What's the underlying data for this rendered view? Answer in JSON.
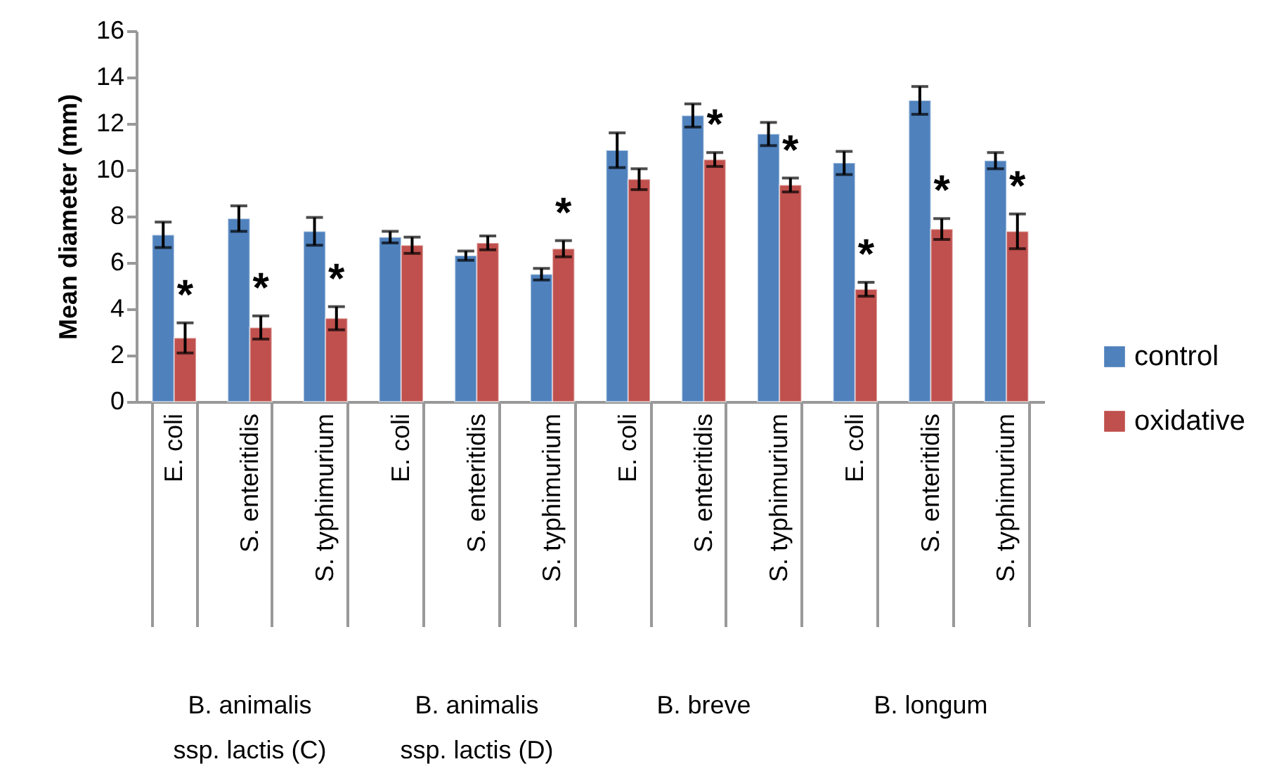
{
  "chart_data": {
    "type": "bar",
    "ylabel": "Mean diameter (mm)",
    "categories": [
      "E. coli",
      "S. enteritidis",
      "S. typhimurium",
      "E. coli",
      "S. enteritidis",
      "S. typhimurium",
      "E. coli",
      "S. enteritidis",
      "S. typhimurium",
      "E. coli",
      "S. enteritidis",
      "S. typhimurium"
    ],
    "series": [
      {
        "name": "control",
        "color": "#4f81bd",
        "values": [
          7.2,
          7.9,
          7.35,
          7.1,
          6.3,
          5.5,
          10.85,
          12.35,
          11.55,
          10.3,
          13.0,
          10.4
        ],
        "errors": [
          0.55,
          0.55,
          0.6,
          0.25,
          0.2,
          0.25,
          0.75,
          0.5,
          0.5,
          0.5,
          0.6,
          0.35
        ]
      },
      {
        "name": "oxidative",
        "color": "#c0504d",
        "values": [
          2.75,
          3.2,
          3.6,
          6.75,
          6.85,
          6.6,
          9.6,
          10.45,
          9.35,
          4.85,
          7.45,
          7.35
        ],
        "errors": [
          0.65,
          0.5,
          0.5,
          0.35,
          0.3,
          0.35,
          0.45,
          0.3,
          0.3,
          0.3,
          0.45,
          0.75
        ],
        "value_labels": [
          "*",
          "*",
          "*",
          null,
          null,
          "*",
          null,
          "*",
          "*",
          "*",
          "*",
          "*"
        ]
      }
    ],
    "ylim": [
      0,
      16
    ],
    "yticks": [
      0,
      2,
      4,
      6,
      8,
      10,
      12,
      14,
      16
    ],
    "legend": "right",
    "annotations": [
      "B. animalis ssp. lactis (C)",
      "B. animalis ssp. lactis (D)",
      "B. breve",
      "B. longum"
    ]
  }
}
